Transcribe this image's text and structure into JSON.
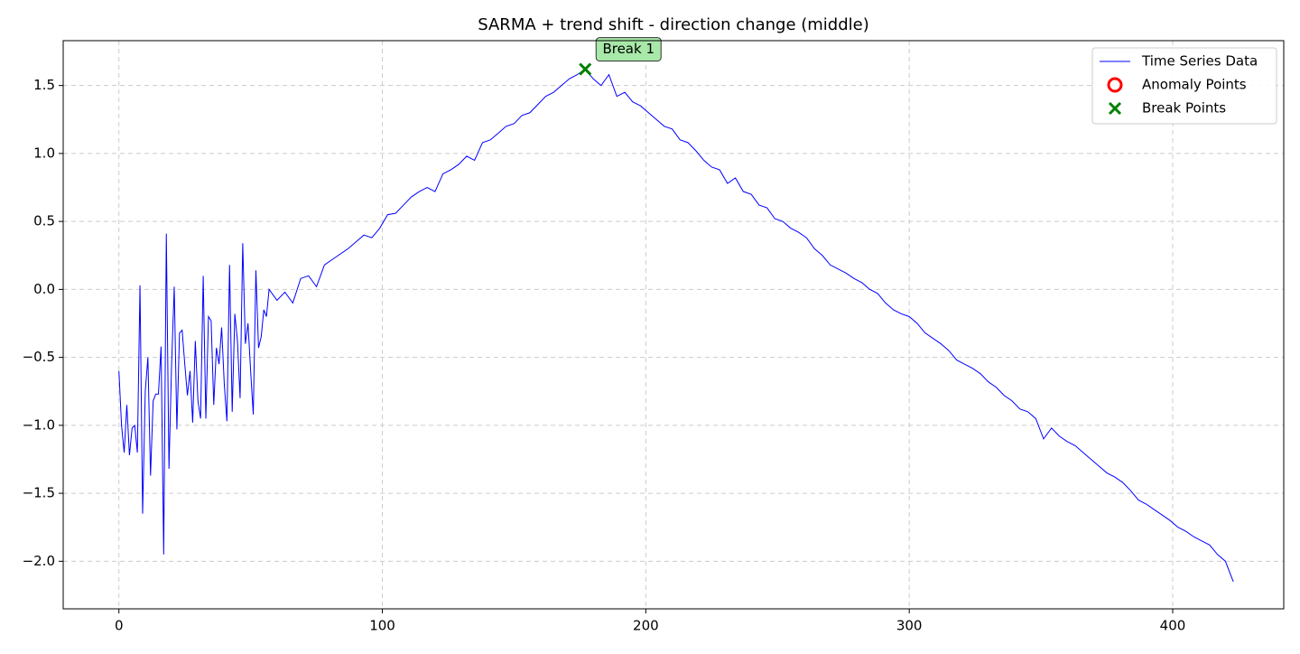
{
  "chart_data": {
    "type": "line",
    "title": "SARMA + trend shift - direction change (middle)",
    "xlim": [
      -21.15,
      442.15
    ],
    "ylim": [
      -2.35,
      1.83
    ],
    "xticks": [
      0,
      100,
      200,
      300,
      400
    ],
    "yticks": [
      {
        "value": -2,
        "label": "−2.0"
      },
      {
        "value": -1.5,
        "label": "−1.5"
      },
      {
        "value": -1,
        "label": "−1.0"
      },
      {
        "value": -0.5,
        "label": "−0.5"
      },
      {
        "value": 0,
        "label": "0.0"
      },
      0.5,
      {
        "value": 1,
        "label": "1.0"
      },
      1.5
    ],
    "grid": true,
    "legend": "upper right",
    "series": [
      {
        "name": "Time Series Data",
        "color": "#0000ff",
        "kind": "line",
        "x": [
          0,
          1,
          2,
          3,
          4,
          5,
          6,
          7,
          8,
          9,
          10,
          11,
          12,
          13,
          14,
          15,
          16,
          17,
          18,
          19,
          20,
          21,
          22,
          23,
          24,
          25,
          26,
          27,
          28,
          29,
          30,
          31,
          32,
          33,
          34,
          35,
          36,
          37,
          38,
          39,
          40,
          41,
          42,
          43,
          44,
          45,
          46,
          47,
          48,
          49,
          50,
          51,
          52,
          53,
          54,
          55,
          56,
          57,
          60,
          63,
          66,
          69,
          72,
          75,
          78,
          81,
          84,
          87,
          90,
          93,
          96,
          99,
          102,
          105,
          108,
          111,
          114,
          117,
          120,
          123,
          126,
          129,
          132,
          135,
          138,
          141,
          144,
          147,
          150,
          153,
          156,
          159,
          162,
          165,
          168,
          171,
          174,
          177,
          180,
          183,
          186,
          189,
          192,
          195,
          198,
          201,
          204,
          207,
          210,
          213,
          216,
          219,
          222,
          225,
          228,
          231,
          234,
          237,
          240,
          243,
          246,
          249,
          252,
          255,
          258,
          261,
          264,
          267,
          270,
          273,
          276,
          279,
          282,
          285,
          288,
          291,
          294,
          297,
          300,
          303,
          306,
          309,
          312,
          315,
          318,
          321,
          324,
          327,
          330,
          333,
          336,
          339,
          342,
          345,
          348,
          351,
          354,
          357,
          360,
          363,
          366,
          369,
          372,
          375,
          378,
          381,
          384,
          387,
          390,
          393,
          396,
          399,
          402,
          405,
          408,
          411,
          414,
          417,
          420,
          423
        ],
        "values": [
          -0.6,
          -1.0,
          -1.2,
          -0.85,
          -1.22,
          -1.02,
          -1.0,
          -1.2,
          0.03,
          -1.65,
          -0.75,
          -0.5,
          -1.37,
          -0.82,
          -0.77,
          -0.77,
          -0.42,
          -1.95,
          0.41,
          -1.32,
          -0.55,
          0.02,
          -1.03,
          -0.32,
          -0.3,
          -0.55,
          -0.78,
          -0.6,
          -0.98,
          -0.38,
          -0.82,
          -0.95,
          0.1,
          -0.95,
          -0.2,
          -0.23,
          -0.85,
          -0.43,
          -0.55,
          -0.28,
          -0.7,
          -0.97,
          0.18,
          -0.9,
          -0.18,
          -0.38,
          -0.8,
          0.34,
          -0.4,
          -0.25,
          -0.6,
          -0.92,
          0.14,
          -0.43,
          -0.35,
          -0.15,
          -0.2,
          0.0,
          -0.08,
          -0.02,
          -0.1,
          0.08,
          0.1,
          0.02,
          0.18,
          0.22,
          0.26,
          0.3,
          0.35,
          0.4,
          0.38,
          0.45,
          0.55,
          0.56,
          0.62,
          0.68,
          0.72,
          0.75,
          0.72,
          0.85,
          0.88,
          0.92,
          0.98,
          0.95,
          1.08,
          1.1,
          1.15,
          1.2,
          1.22,
          1.28,
          1.3,
          1.36,
          1.42,
          1.45,
          1.5,
          1.55,
          1.58,
          1.62,
          1.55,
          1.5,
          1.58,
          1.42,
          1.45,
          1.38,
          1.35,
          1.3,
          1.25,
          1.2,
          1.18,
          1.1,
          1.08,
          1.02,
          0.95,
          0.9,
          0.88,
          0.78,
          0.82,
          0.72,
          0.7,
          0.62,
          0.6,
          0.52,
          0.5,
          0.45,
          0.42,
          0.38,
          0.3,
          0.25,
          0.18,
          0.15,
          0.12,
          0.08,
          0.05,
          0.0,
          -0.03,
          -0.1,
          -0.15,
          -0.18,
          -0.2,
          -0.25,
          -0.32,
          -0.36,
          -0.4,
          -0.45,
          -0.52,
          -0.55,
          -0.58,
          -0.62,
          -0.68,
          -0.72,
          -0.78,
          -0.82,
          -0.88,
          -0.9,
          -0.95,
          -1.1,
          -1.02,
          -1.08,
          -1.12,
          -1.15,
          -1.2,
          -1.25,
          -1.3,
          -1.35,
          -1.38,
          -1.42,
          -1.48,
          -1.55,
          -1.58,
          -1.62,
          -1.66,
          -1.7,
          -1.75,
          -1.78,
          -1.82,
          -1.85,
          -1.88,
          -1.95,
          -2.0,
          -2.15
        ]
      },
      {
        "name": "Anomaly Points",
        "color": "#ff0000",
        "kind": "circle",
        "x": [],
        "values": []
      },
      {
        "name": "Break Points",
        "color": "#008000",
        "kind": "cross",
        "x": [
          177
        ],
        "values": [
          1.62
        ]
      }
    ],
    "annotations": [
      {
        "text": "Break 1",
        "series": 2,
        "point": 0
      }
    ]
  }
}
